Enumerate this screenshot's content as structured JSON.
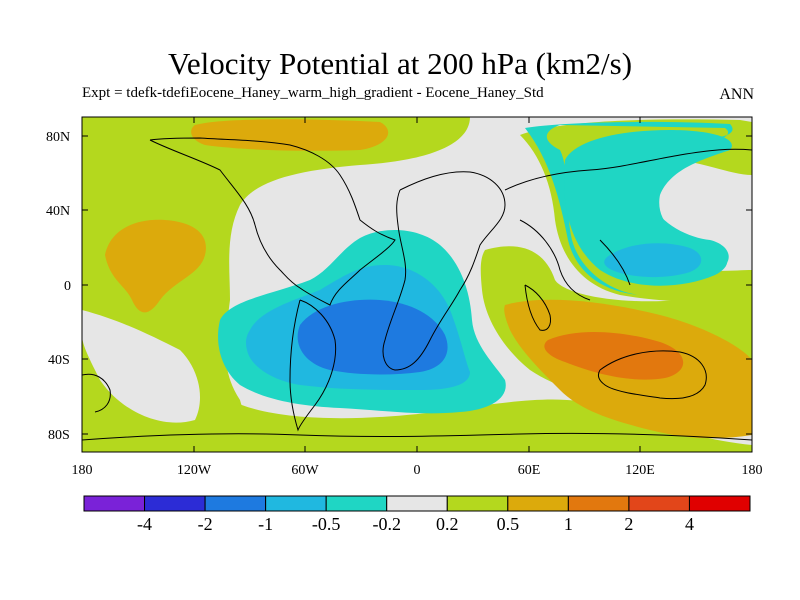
{
  "title": "Velocity Potential at 200 hPa (km2/s)",
  "subtitle": "Expt = tdefk-tdefiEocene_Haney_warm_high_gradient - Eocene_Haney_Std",
  "season": "ANN",
  "axes": {
    "lat_labels": [
      "80N",
      "40N",
      "0",
      "40S",
      "80S"
    ],
    "lon_labels": [
      "180",
      "120W",
      "60W",
      "0",
      "60E",
      "120E",
      "180"
    ]
  },
  "colorbar": {
    "levels": [
      "-4",
      "-2",
      "-1",
      "-0.5",
      "-0.2",
      "0.2",
      "0.5",
      "1",
      "2",
      "4"
    ],
    "colors": [
      "#7a22d8",
      "#2c2cd6",
      "#1e7ae0",
      "#20b8e0",
      "#1fd6c4",
      "#e6e6e6",
      "#b4d81e",
      "#dcaa0c",
      "#e2780e",
      "#e2461a",
      "#e00000"
    ]
  }
}
